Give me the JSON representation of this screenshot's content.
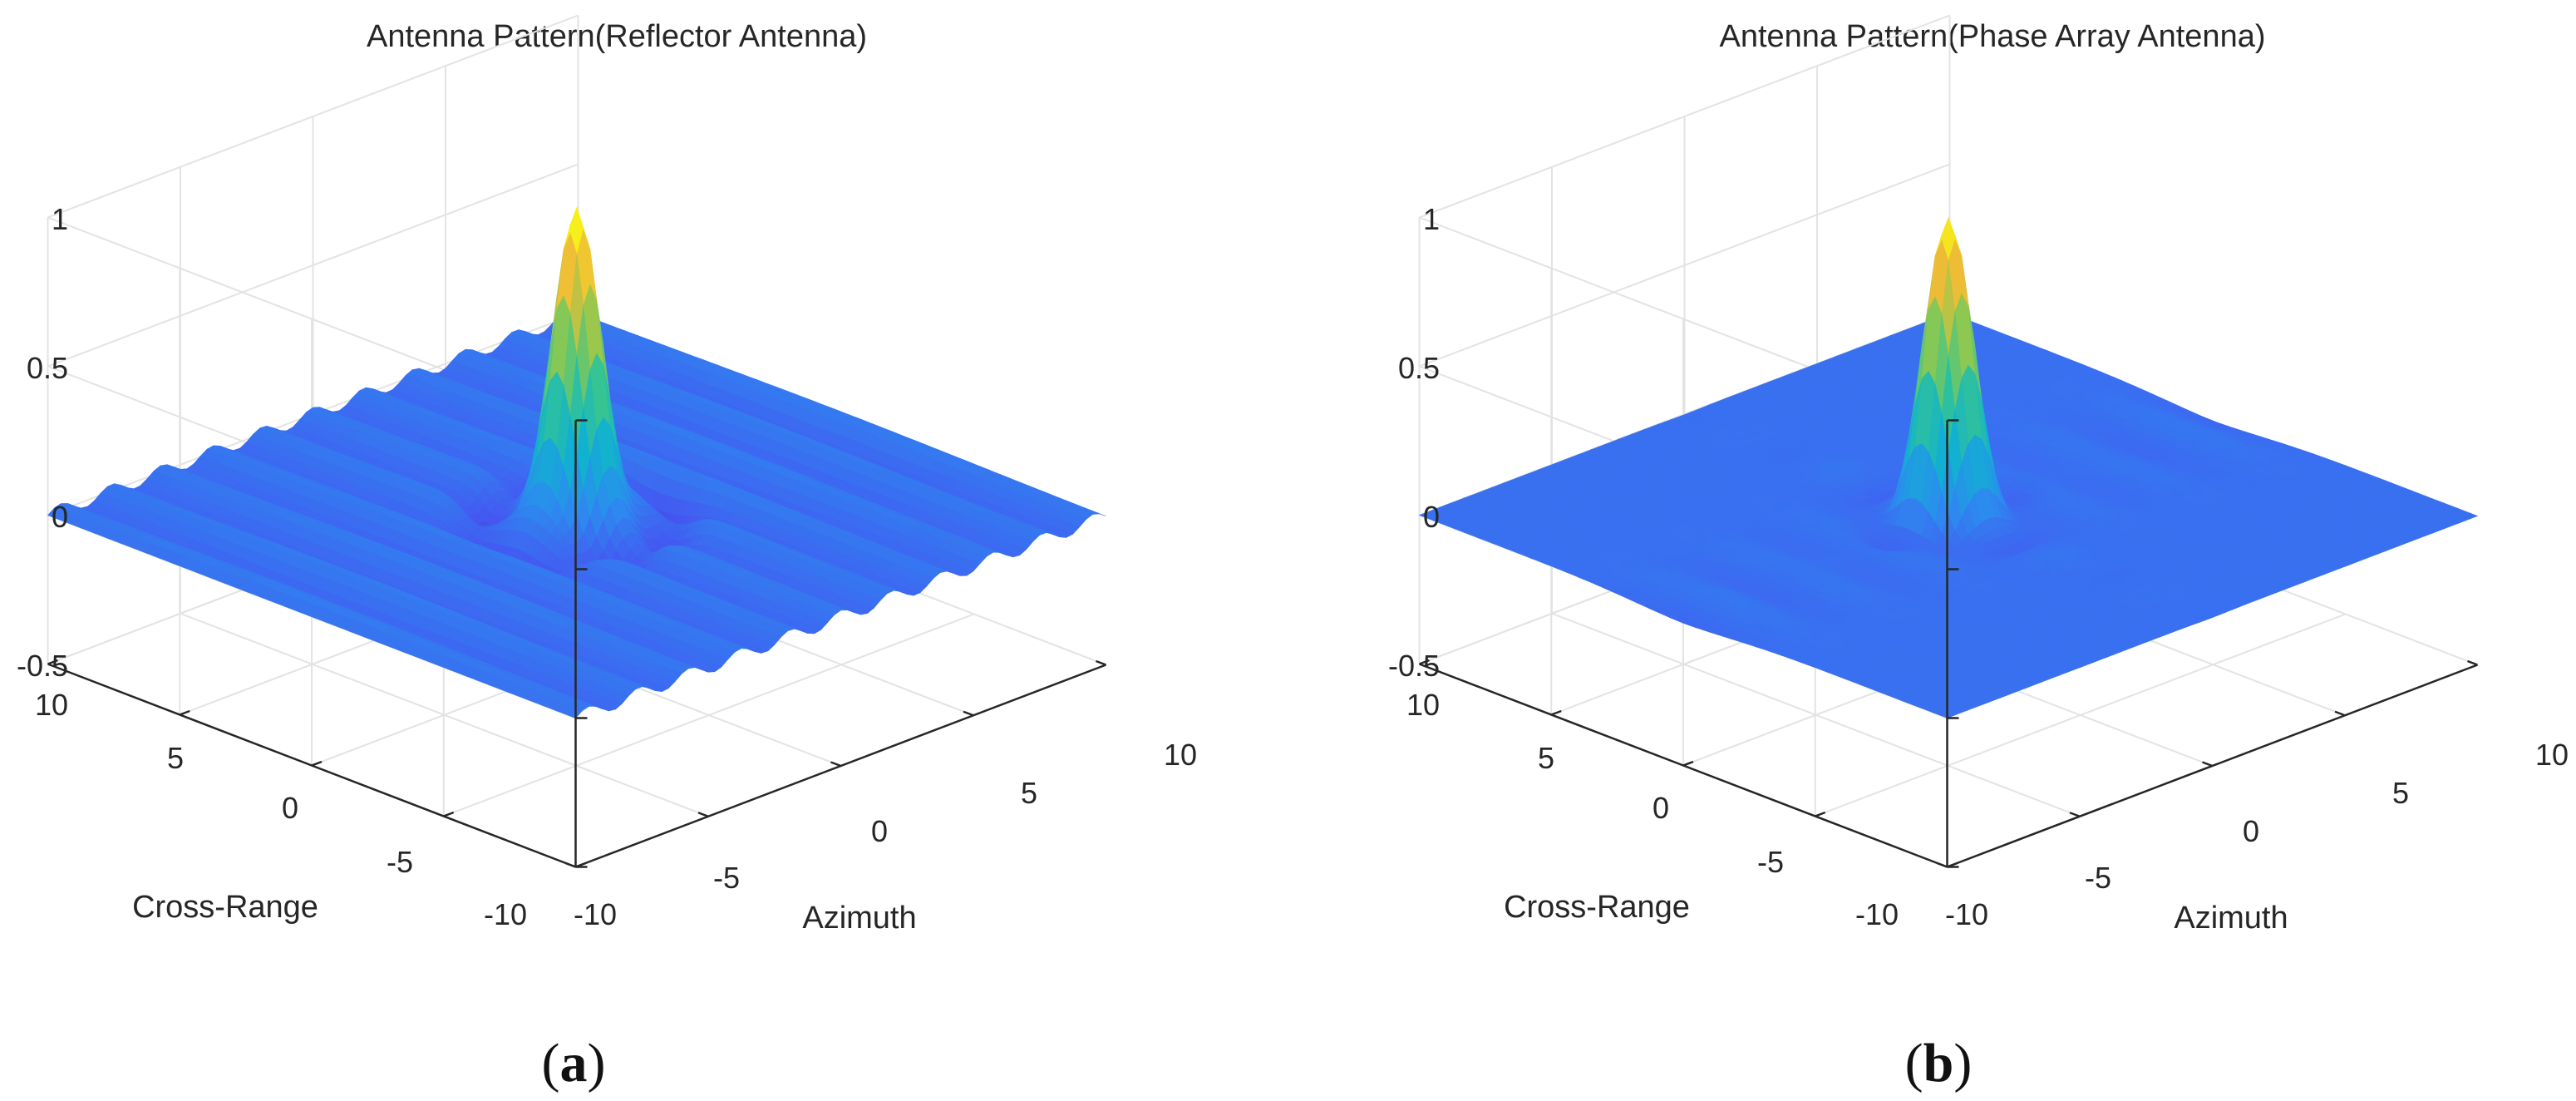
{
  "figure": {
    "captions": [
      {
        "open": "(",
        "letter": "a",
        "close": ")"
      },
      {
        "open": "(",
        "letter": "b",
        "close": ")"
      }
    ]
  },
  "chart_data": [
    {
      "type": "surface",
      "title": "Antenna Pattern(Reflector Antenna)",
      "xlabel": "Azimuth",
      "ylabel": "Cross-Range",
      "zlabel": "",
      "xlim": [
        -10,
        10
      ],
      "ylim": [
        -10,
        10
      ],
      "zlim": [
        -0.5,
        1
      ],
      "xticks": [
        "-10",
        "-5",
        "0",
        "5",
        "10"
      ],
      "yticks": [
        "-10",
        "-5",
        "0",
        "5",
        "10"
      ],
      "zticks": [
        "-0.5",
        "0",
        "0.5",
        "1"
      ],
      "peak": {
        "x": 0,
        "y": 0,
        "z": 1
      },
      "pattern": "reflector",
      "colormap": "parula",
      "grid": true
    },
    {
      "type": "surface",
      "title": "Antenna Pattern(Phase Array Antenna)",
      "xlabel": "Azimuth",
      "ylabel": "Cross-Range",
      "zlabel": "",
      "xlim": [
        -10,
        10
      ],
      "ylim": [
        -10,
        10
      ],
      "zlim": [
        -0.5,
        1
      ],
      "xticks": [
        "-10",
        "-5",
        "0",
        "5",
        "10"
      ],
      "yticks": [
        "-10",
        "-5",
        "0",
        "5",
        "10"
      ],
      "zticks": [
        "-0.5",
        "0",
        "0.5",
        "1"
      ],
      "peak": {
        "x": 0,
        "y": 0,
        "z": 1
      },
      "pattern": "phased-array",
      "colormap": "parula",
      "grid": true
    }
  ]
}
